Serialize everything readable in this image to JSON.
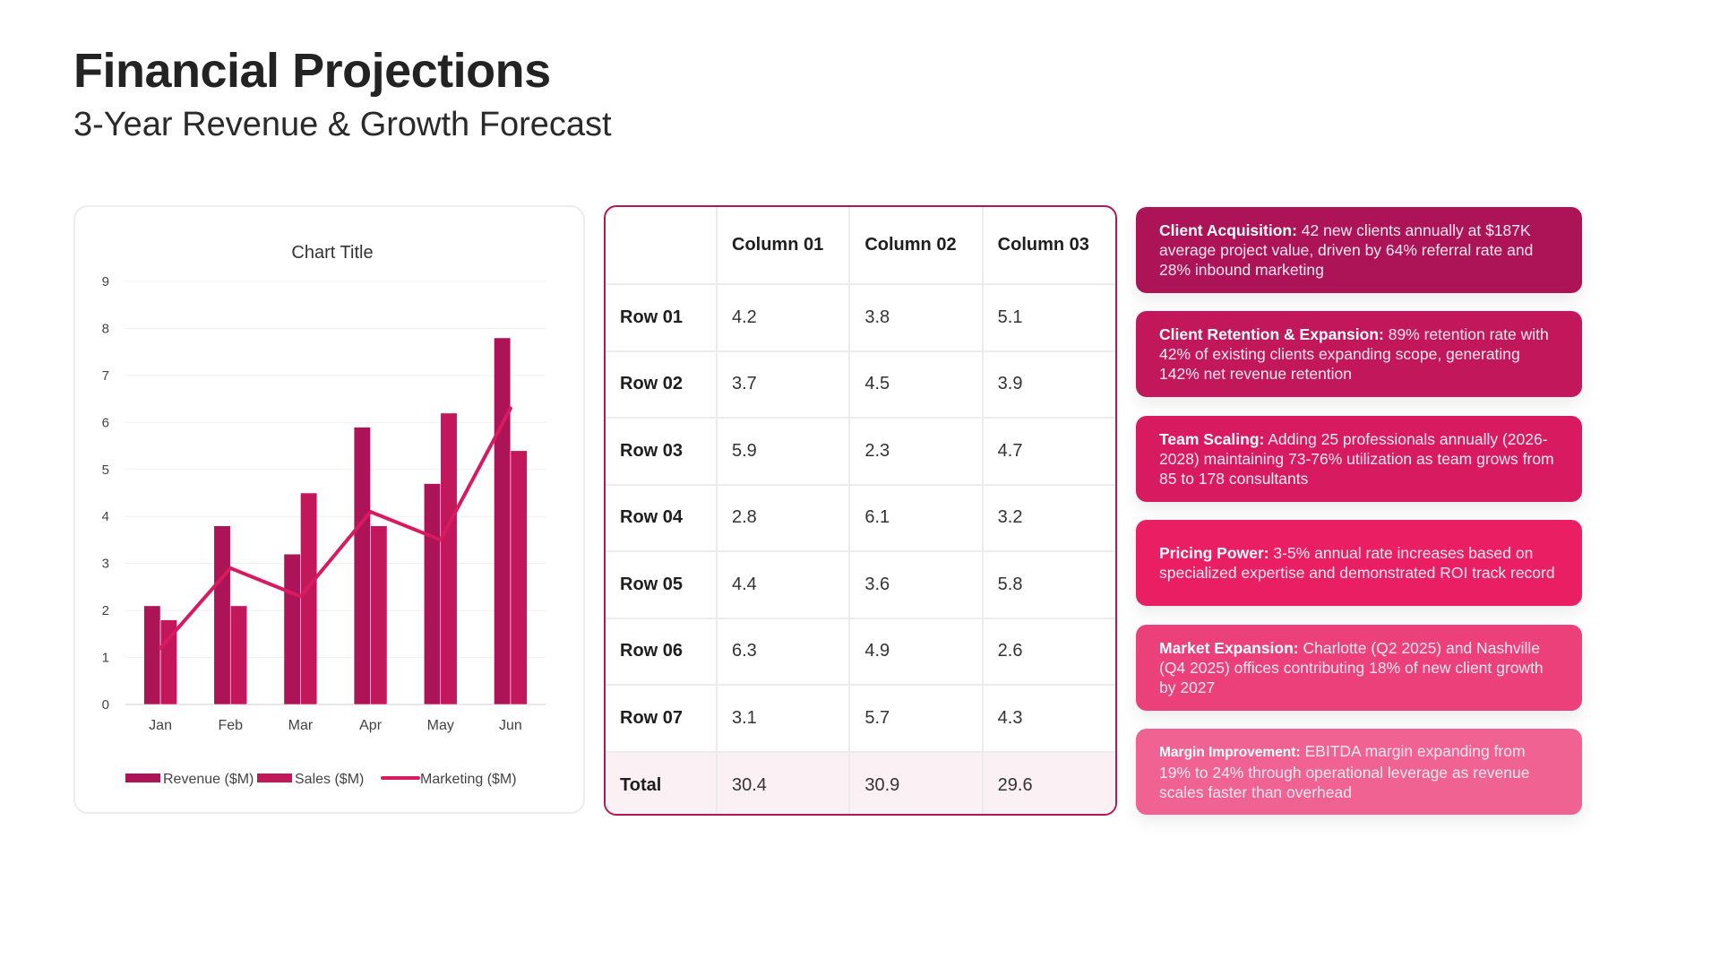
{
  "header": {
    "title": "Financial Projections",
    "subtitle": "3-Year Revenue & Growth Forecast"
  },
  "chart_data": {
    "type": "bar",
    "title": "Chart Title",
    "xlabel": "",
    "ylabel": "",
    "ylim": [
      0,
      9
    ],
    "yticks": [
      "0",
      "1",
      "2",
      "3",
      "4",
      "5",
      "6",
      "7",
      "8",
      "9"
    ],
    "grid": true,
    "legend_position": "bottom",
    "categories": [
      "Jan",
      "Feb",
      "Mar",
      "Apr",
      "May",
      "Jun"
    ],
    "series": [
      {
        "name": "Revenue ($M)",
        "kind": "bar",
        "color": "#ad1457",
        "values": [
          2.1,
          3.8,
          3.2,
          5.9,
          4.7,
          7.8
        ]
      },
      {
        "name": "Sales ($M)",
        "kind": "bar",
        "color": "#c2185b",
        "values": [
          1.8,
          2.1,
          4.5,
          3.8,
          6.2,
          5.4
        ]
      },
      {
        "name": "Marketing ($M)",
        "kind": "line",
        "color": "#d81b60",
        "values": [
          1.2,
          2.9,
          2.3,
          4.1,
          3.5,
          6.3
        ]
      }
    ]
  },
  "table": {
    "columns": [
      "",
      "Column 01",
      "Column 02",
      "Column 03"
    ],
    "rows": [
      {
        "label": "Row 01",
        "values": [
          "4.2",
          "3.8",
          "5.1"
        ]
      },
      {
        "label": "Row 02",
        "values": [
          "3.7",
          "4.5",
          "3.9"
        ]
      },
      {
        "label": "Row 03",
        "values": [
          "5.9",
          "2.3",
          "4.7"
        ]
      },
      {
        "label": "Row 04",
        "values": [
          "2.8",
          "6.1",
          "3.2"
        ]
      },
      {
        "label": "Row 05",
        "values": [
          "4.4",
          "3.6",
          "5.8"
        ]
      },
      {
        "label": "Row 06",
        "values": [
          "6.3",
          "4.9",
          "2.6"
        ]
      },
      {
        "label": "Row 07",
        "values": [
          "3.1",
          "5.7",
          "4.3"
        ]
      }
    ],
    "total": {
      "label": "Total",
      "values": [
        "30.4",
        "30.9",
        "29.6"
      ]
    },
    "border_color": "#b0185a"
  },
  "insights": [
    {
      "lead": "Client Acquisition:",
      "text": " 42 new clients annually at $187K average project value, driven by 64% referral rate and 28% inbound marketing",
      "color": "#ad1457"
    },
    {
      "lead": "Client Retention & Expansion:",
      "text": " 89% retention rate with 42% of existing clients expanding scope, generating 142% net revenue retention",
      "color": "#c2185b"
    },
    {
      "lead": "Team Scaling:",
      "text": " Adding 25 professionals annually (2026-2028) maintaining 73-76% utilization as team grows from 85 to 178 consultants",
      "color": "#d81b60"
    },
    {
      "lead": "Pricing Power:",
      "text": " 3-5% annual rate increases based on specialized expertise and demonstrated ROI track record",
      "color": "#e91e63"
    },
    {
      "lead": "Market Expansion:",
      "text": " Charlotte (Q2 2025) and Nashville (Q4 2025) offices contributing 18% of new client growth by 2027",
      "color": "#ec407a"
    },
    {
      "lead": "Margin Improvement:",
      "text": " EBITDA margin expanding from 19% to 24% through operational leverage as revenue scales faster than overhead",
      "color": "#f06292"
    }
  ]
}
